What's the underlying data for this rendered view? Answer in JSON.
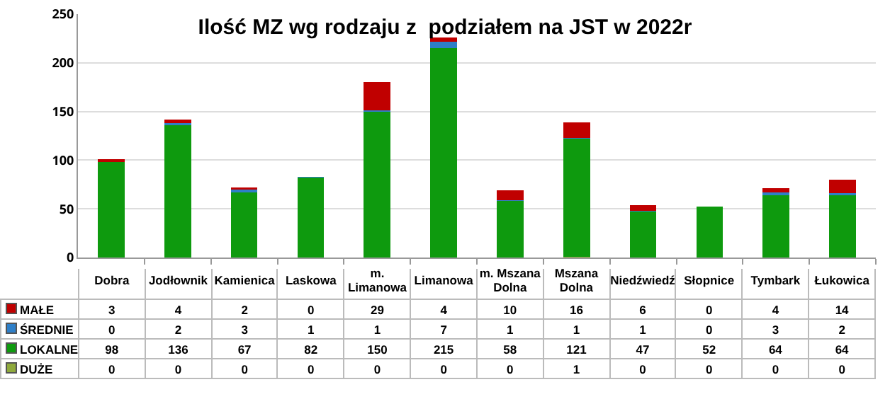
{
  "chart_data": {
    "type": "bar",
    "title": "Ilość MZ wg rodzaju z  podziałem na JST w 2022r",
    "stacked": true,
    "data_labels": true,
    "grid": "y",
    "legend": "bottom",
    "ylim": [
      0,
      250
    ],
    "yticks": [
      0,
      50,
      100,
      150,
      200,
      250
    ],
    "categories": [
      "Dobra",
      "Jodłownik",
      "Kamienica",
      "Laskowa",
      "m. Limanowa",
      "Limanowa",
      "m. Mszana Dolna",
      "Mszana Dolna",
      "Niedźwiedź",
      "Słopnice",
      "Tymbark",
      "Łukowica"
    ],
    "series": [
      {
        "name": "DUŻE",
        "color": "#8faa3c",
        "values": [
          0,
          0,
          0,
          0,
          0,
          0,
          0,
          1,
          0,
          0,
          0,
          0
        ]
      },
      {
        "name": "LOKALNE",
        "color": "#0e9a0e",
        "values": [
          98,
          136,
          67,
          82,
          150,
          215,
          58,
          121,
          47,
          52,
          64,
          64
        ]
      },
      {
        "name": "ŚREDNIE",
        "color": "#2e7fc8",
        "values": [
          0,
          2,
          3,
          1,
          1,
          7,
          1,
          1,
          1,
          0,
          3,
          2
        ]
      },
      {
        "name": "MAŁE",
        "color": "#c00000",
        "values": [
          3,
          4,
          2,
          0,
          29,
          4,
          10,
          16,
          6,
          0,
          4,
          14
        ]
      }
    ]
  }
}
